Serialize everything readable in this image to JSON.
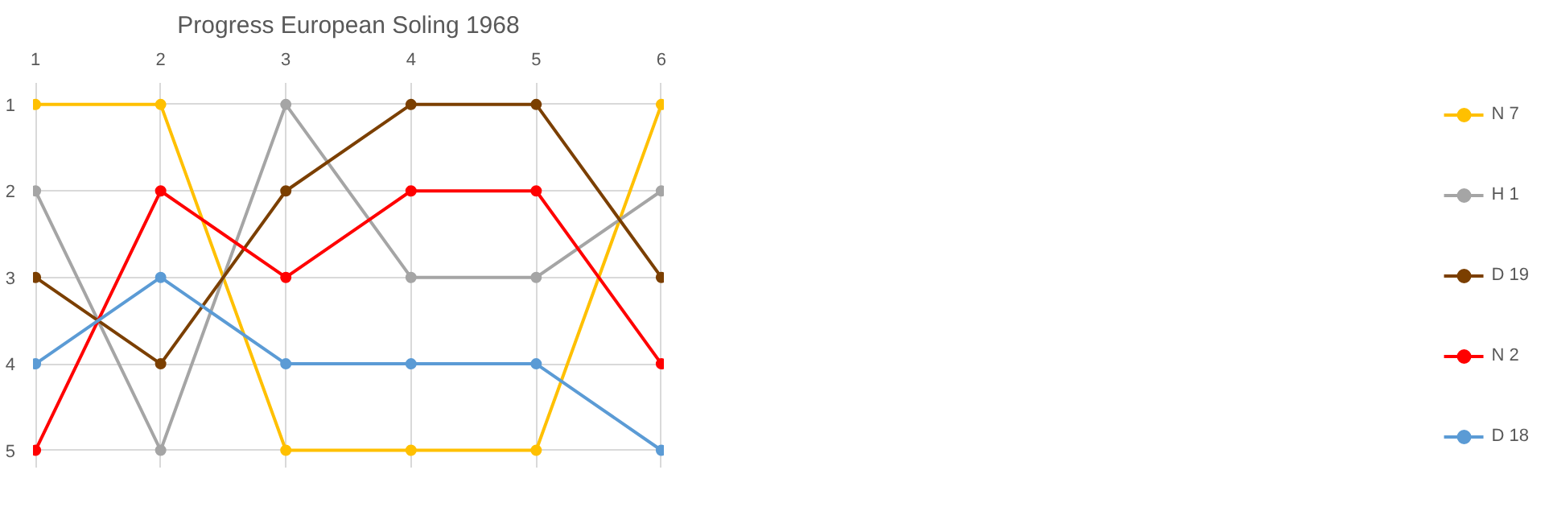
{
  "chart_data": {
    "type": "line",
    "title": "Progress European Soling 1968",
    "x": [
      1,
      2,
      3,
      4,
      5,
      6
    ],
    "xlim": [
      0.98,
      6.02
    ],
    "xticks": [
      1,
      2,
      3,
      4,
      5,
      6
    ],
    "ylim": [
      5.2,
      0.75
    ],
    "yticks": [
      1,
      2,
      3,
      4,
      5
    ],
    "grid": true,
    "legend": "right",
    "marker": "circle",
    "line_style": "solid",
    "series": [
      {
        "name": "N 7",
        "color": "#ffc000",
        "values": [
          1,
          1,
          5,
          5,
          5,
          1
        ]
      },
      {
        "name": "H 1",
        "color": "#a5a5a5",
        "values": [
          2,
          5,
          1,
          3,
          3,
          2
        ]
      },
      {
        "name": "D 19",
        "color": "#7b3f00",
        "values": [
          3,
          4,
          2,
          1,
          1,
          3
        ]
      },
      {
        "name": "N 2",
        "color": "#ff0000",
        "values": [
          5,
          2,
          3,
          2,
          2,
          4
        ]
      },
      {
        "name": "D 18",
        "color": "#5b9bd5",
        "values": [
          4,
          3,
          4,
          4,
          4,
          5
        ]
      }
    ]
  }
}
